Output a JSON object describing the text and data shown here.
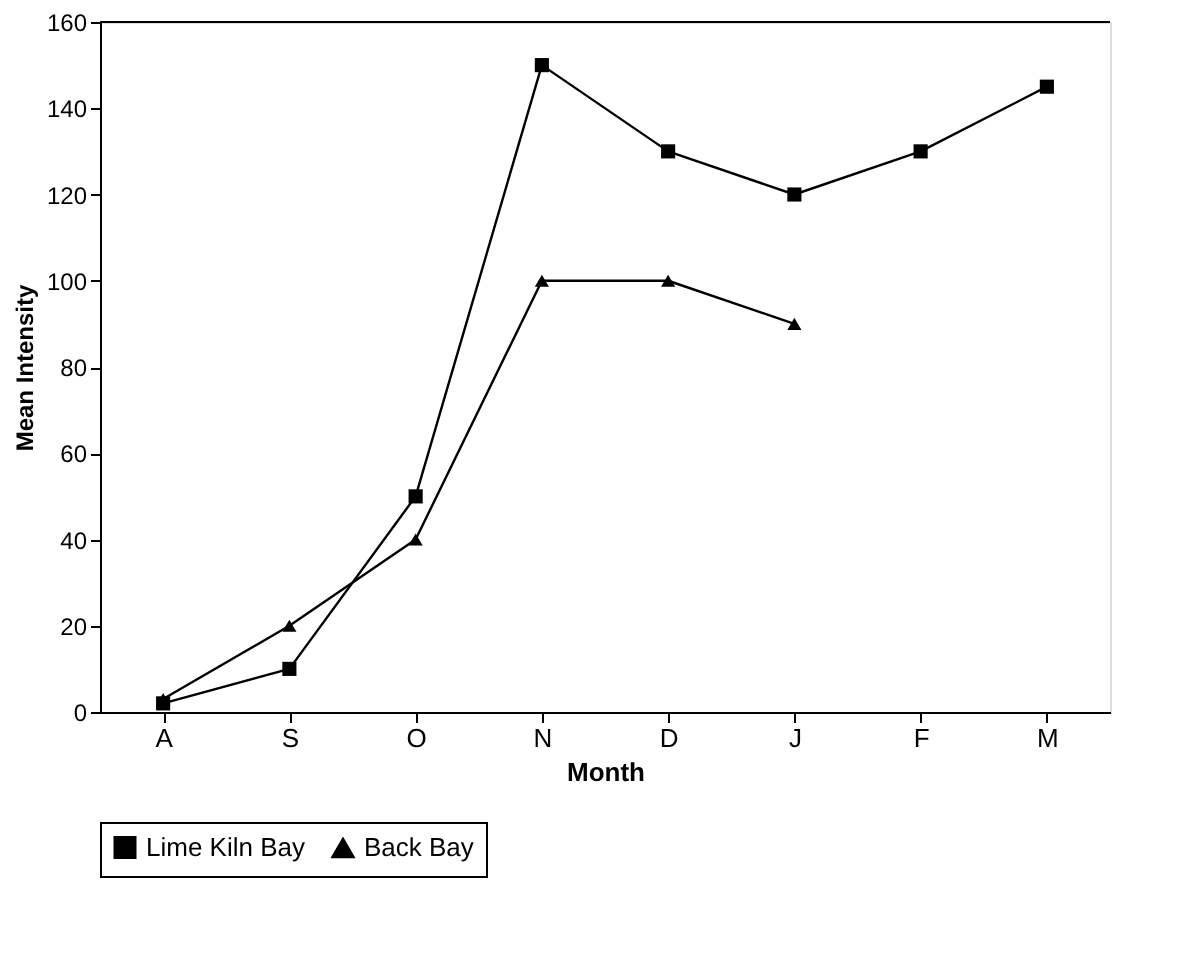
{
  "chart_data": {
    "type": "line",
    "xlabel": "Month",
    "ylabel": "Mean Intensity",
    "categories": [
      "A",
      "S",
      "O",
      "N",
      "D",
      "J",
      "F",
      "M"
    ],
    "series": [
      {
        "name": "Lime Kiln Bay",
        "color": "#000000",
        "marker": "square",
        "values": [
          2,
          10,
          50,
          150,
          130,
          120,
          130,
          145
        ]
      },
      {
        "name": "Back Bay",
        "color": "#000000",
        "marker": "triangle",
        "values": [
          3,
          20,
          40,
          100,
          100,
          90,
          null,
          null
        ]
      }
    ],
    "ylim": [
      0,
      160
    ],
    "yticks": [
      0,
      20,
      40,
      60,
      80,
      100,
      120,
      140,
      160
    ],
    "grid": false,
    "legend": "bottom",
    "line_style": "solid"
  }
}
